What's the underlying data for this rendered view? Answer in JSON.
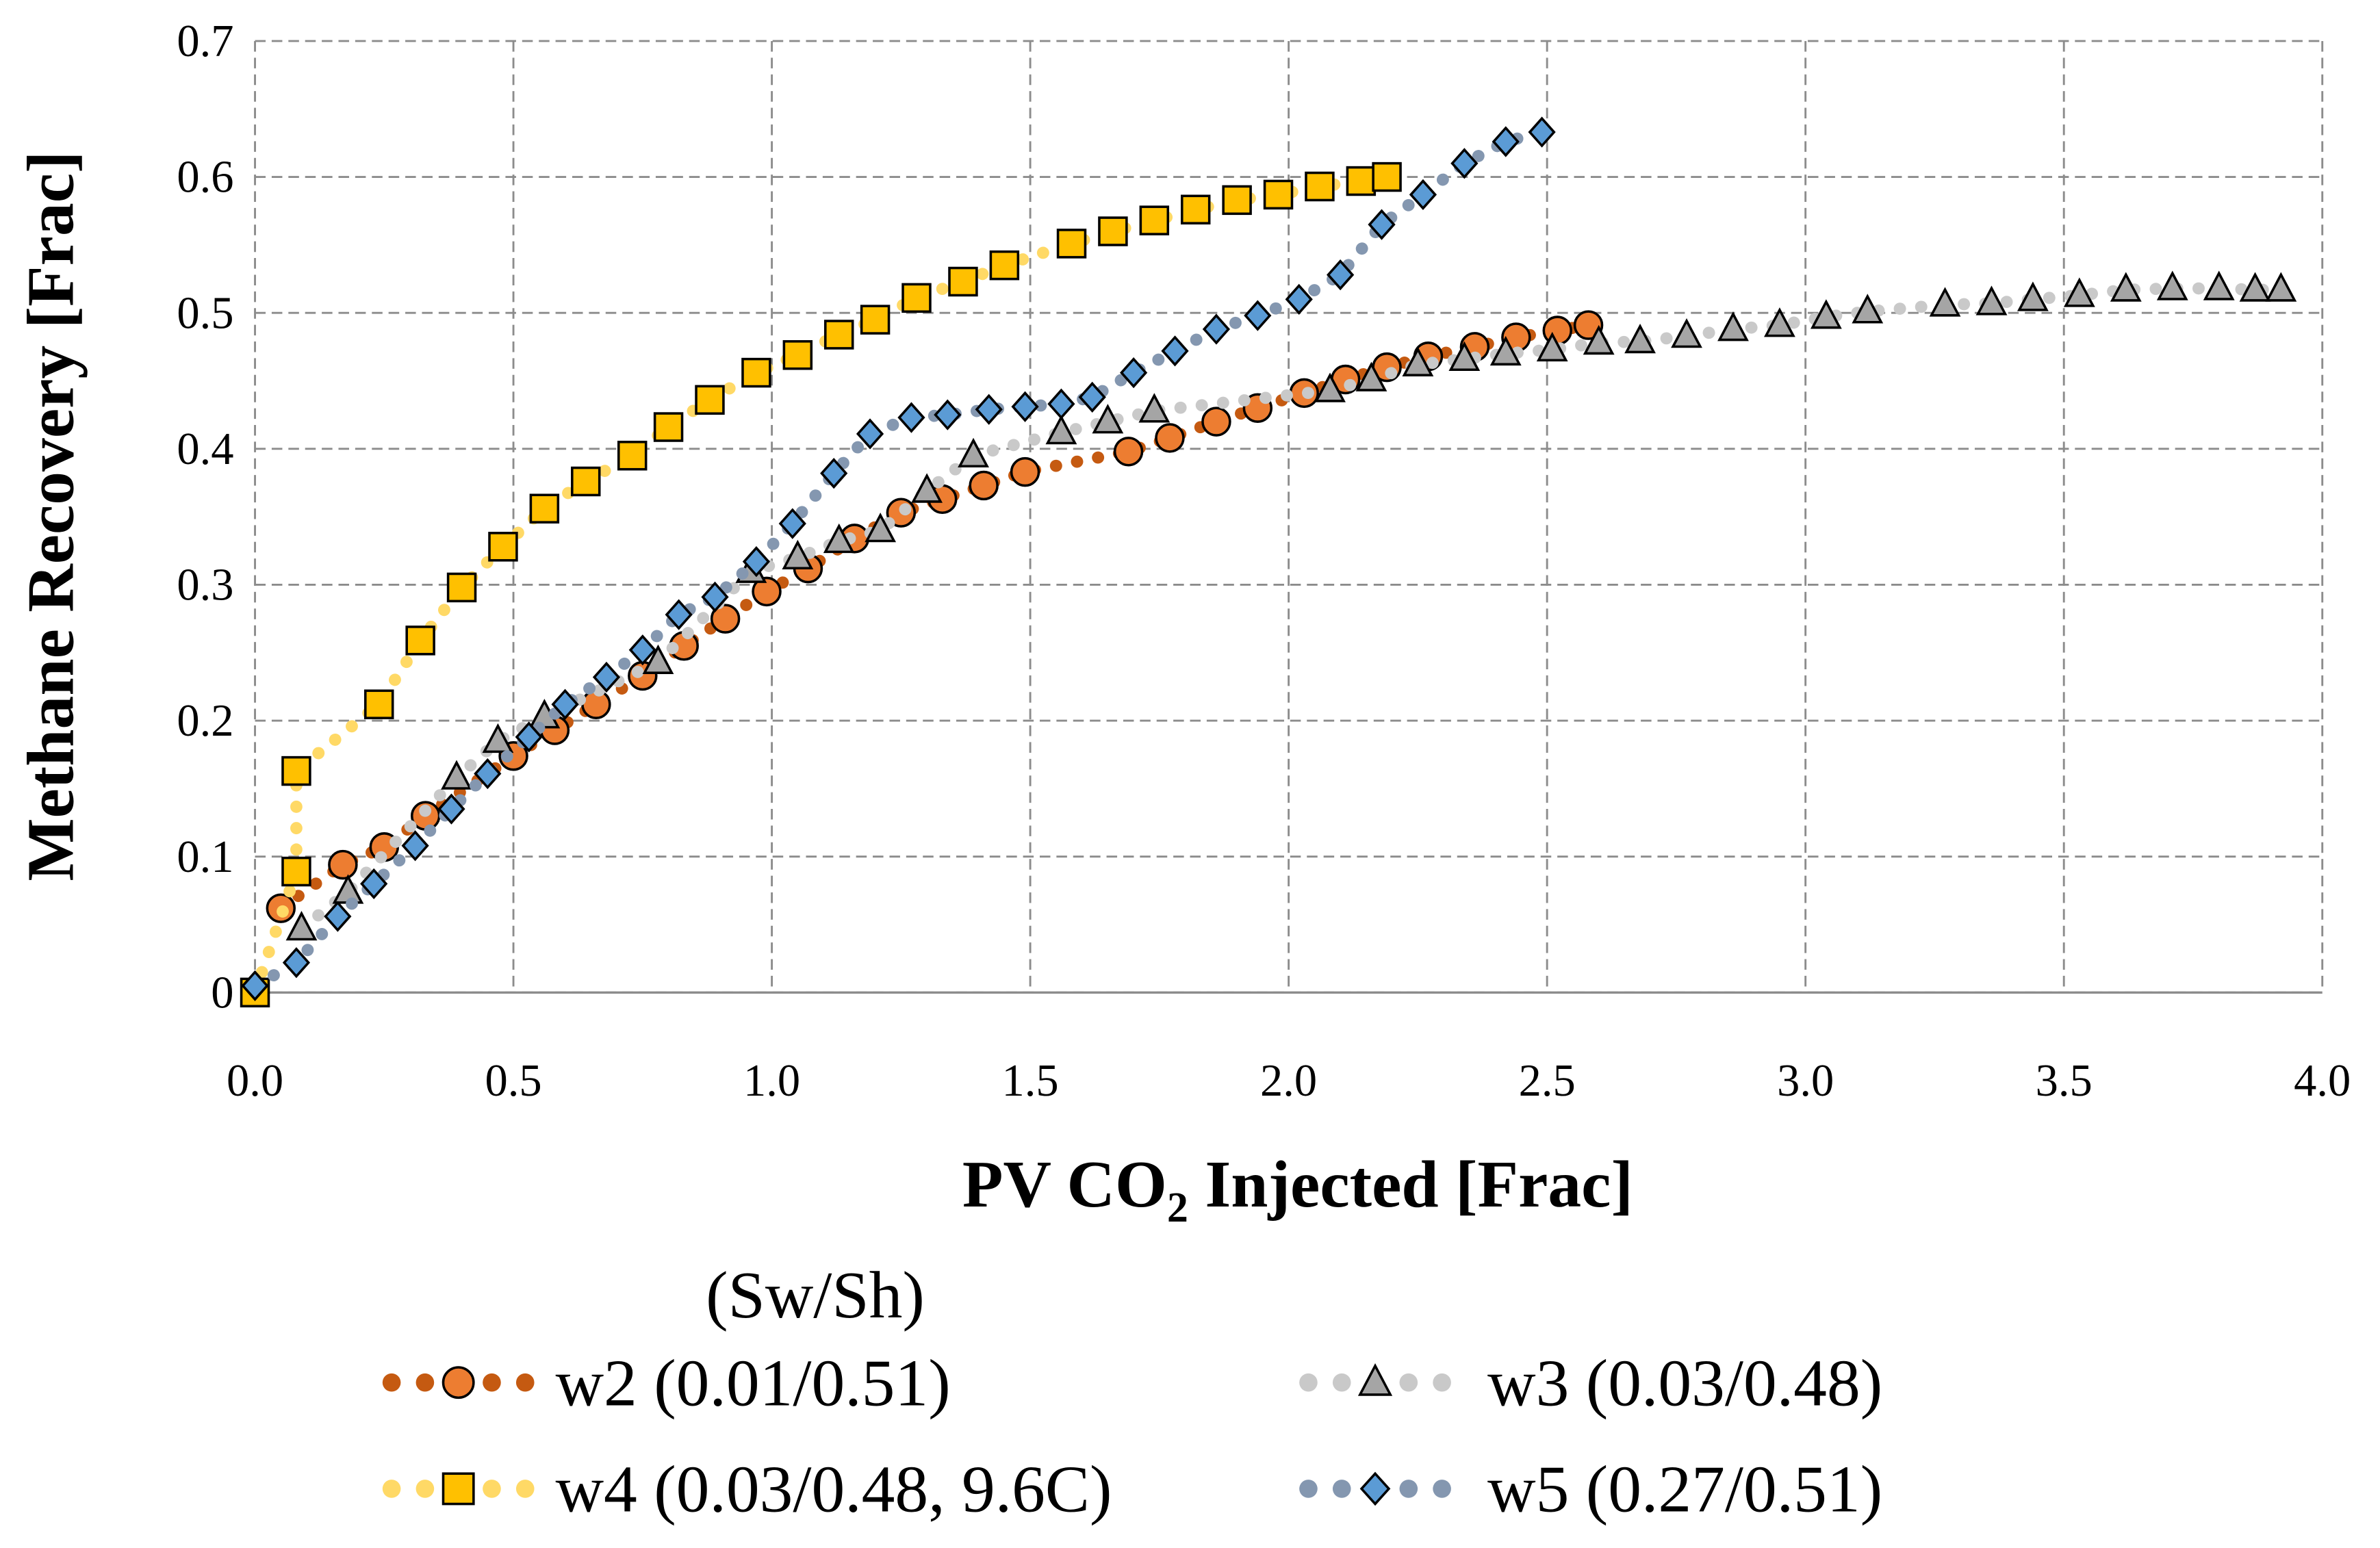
{
  "chart_data": {
    "type": "scatter",
    "title": "",
    "xlabel": "PV CO2 Injected [Frac]",
    "xlabel_parts": {
      "main": "PV CO",
      "sub": "2",
      "rest": " Injected [Frac]"
    },
    "ylabel": "Methane Recovery [Frac]",
    "xlim": [
      0,
      4.0
    ],
    "ylim": [
      0,
      0.7
    ],
    "xticks": [
      "0.0",
      "0.5",
      "1.0",
      "1.5",
      "2.0",
      "2.5",
      "3.0",
      "3.5",
      "4.0"
    ],
    "yticks": [
      "0",
      "0.1",
      "0.2",
      "0.3",
      "0.4",
      "0.5",
      "0.6",
      "0.7"
    ],
    "grid": true,
    "legend_title": "(Sw/Sh)",
    "legend_placement": "bottom",
    "series": [
      {
        "name": "w2 (0.01/0.51)",
        "marker": "circle",
        "color": "#ED7D31",
        "line_color": "#C55A11",
        "x": [
          0.05,
          0.17,
          0.25,
          0.33,
          0.5,
          0.58,
          0.66,
          0.75,
          0.83,
          0.91,
          0.99,
          1.07,
          1.16,
          1.25,
          1.33,
          1.41,
          1.49,
          1.69,
          1.77,
          1.86,
          1.94,
          2.03,
          2.11,
          2.19,
          2.27,
          2.36,
          2.44,
          2.52,
          2.58
        ],
        "y": [
          0.062,
          0.094,
          0.107,
          0.13,
          0.174,
          0.193,
          0.212,
          0.233,
          0.255,
          0.275,
          0.295,
          0.312,
          0.334,
          0.353,
          0.363,
          0.373,
          0.383,
          0.398,
          0.408,
          0.42,
          0.43,
          0.441,
          0.451,
          0.46,
          0.468,
          0.475,
          0.482,
          0.487,
          0.491
        ]
      },
      {
        "name": "w3 (0.03/0.48)",
        "marker": "triangle",
        "color": "#A5A5A5",
        "line_color": "#C9C9C9",
        "x": [
          0.09,
          0.18,
          0.39,
          0.47,
          0.56,
          0.78,
          0.96,
          1.05,
          1.13,
          1.21,
          1.3,
          1.39,
          1.56,
          1.65,
          1.74,
          2.08,
          2.16,
          2.25,
          2.34,
          2.42,
          2.51,
          2.6,
          2.68,
          2.77,
          2.86,
          2.95,
          3.04,
          3.12,
          3.27,
          3.36,
          3.44,
          3.53,
          3.62,
          3.71,
          3.8,
          3.87,
          3.92
        ],
        "y": [
          0.047,
          0.074,
          0.158,
          0.185,
          0.203,
          0.243,
          0.31,
          0.32,
          0.332,
          0.34,
          0.369,
          0.395,
          0.412,
          0.42,
          0.428,
          0.443,
          0.451,
          0.462,
          0.466,
          0.47,
          0.473,
          0.478,
          0.479,
          0.483,
          0.488,
          0.491,
          0.497,
          0.501,
          0.506,
          0.507,
          0.51,
          0.513,
          0.517,
          0.518,
          0.518,
          0.517,
          0.517
        ]
      },
      {
        "name": "w4 (0.03/0.48, 9.6C)",
        "marker": "square",
        "color": "#FFC000",
        "line_color": "#FFD966",
        "x": [
          0,
          0.08,
          0.08,
          0.24,
          0.32,
          0.4,
          0.48,
          0.56,
          0.64,
          0.73,
          0.8,
          0.88,
          0.97,
          1.05,
          1.13,
          1.2,
          1.28,
          1.37,
          1.45,
          1.58,
          1.66,
          1.74,
          1.82,
          1.9,
          1.98,
          2.06,
          2.14,
          2.19
        ],
        "y": [
          0,
          0.089,
          0.163,
          0.212,
          0.259,
          0.298,
          0.328,
          0.356,
          0.376,
          0.395,
          0.416,
          0.436,
          0.456,
          0.469,
          0.484,
          0.495,
          0.511,
          0.523,
          0.535,
          0.551,
          0.56,
          0.568,
          0.576,
          0.583,
          0.587,
          0.593,
          0.597,
          0.6
        ]
      },
      {
        "name": "w5 (0.27/0.51)",
        "marker": "diamond",
        "color": "#5B9BD5",
        "line_color": "#8497B0",
        "x": [
          0,
          0.08,
          0.16,
          0.23,
          0.31,
          0.38,
          0.45,
          0.53,
          0.6,
          0.68,
          0.75,
          0.82,
          0.89,
          0.97,
          1.04,
          1.12,
          1.19,
          1.27,
          1.34,
          1.42,
          1.49,
          1.56,
          1.62,
          1.7,
          1.78,
          1.86,
          1.94,
          2.02,
          2.1,
          2.18,
          2.26,
          2.34,
          2.42,
          2.49
        ],
        "y": [
          0.005,
          0.022,
          0.056,
          0.08,
          0.108,
          0.135,
          0.161,
          0.188,
          0.212,
          0.232,
          0.252,
          0.278,
          0.291,
          0.317,
          0.345,
          0.382,
          0.411,
          0.423,
          0.425,
          0.429,
          0.431,
          0.433,
          0.438,
          0.456,
          0.472,
          0.488,
          0.498,
          0.51,
          0.528,
          0.565,
          0.587,
          0.61,
          0.626,
          0.633
        ]
      }
    ]
  }
}
